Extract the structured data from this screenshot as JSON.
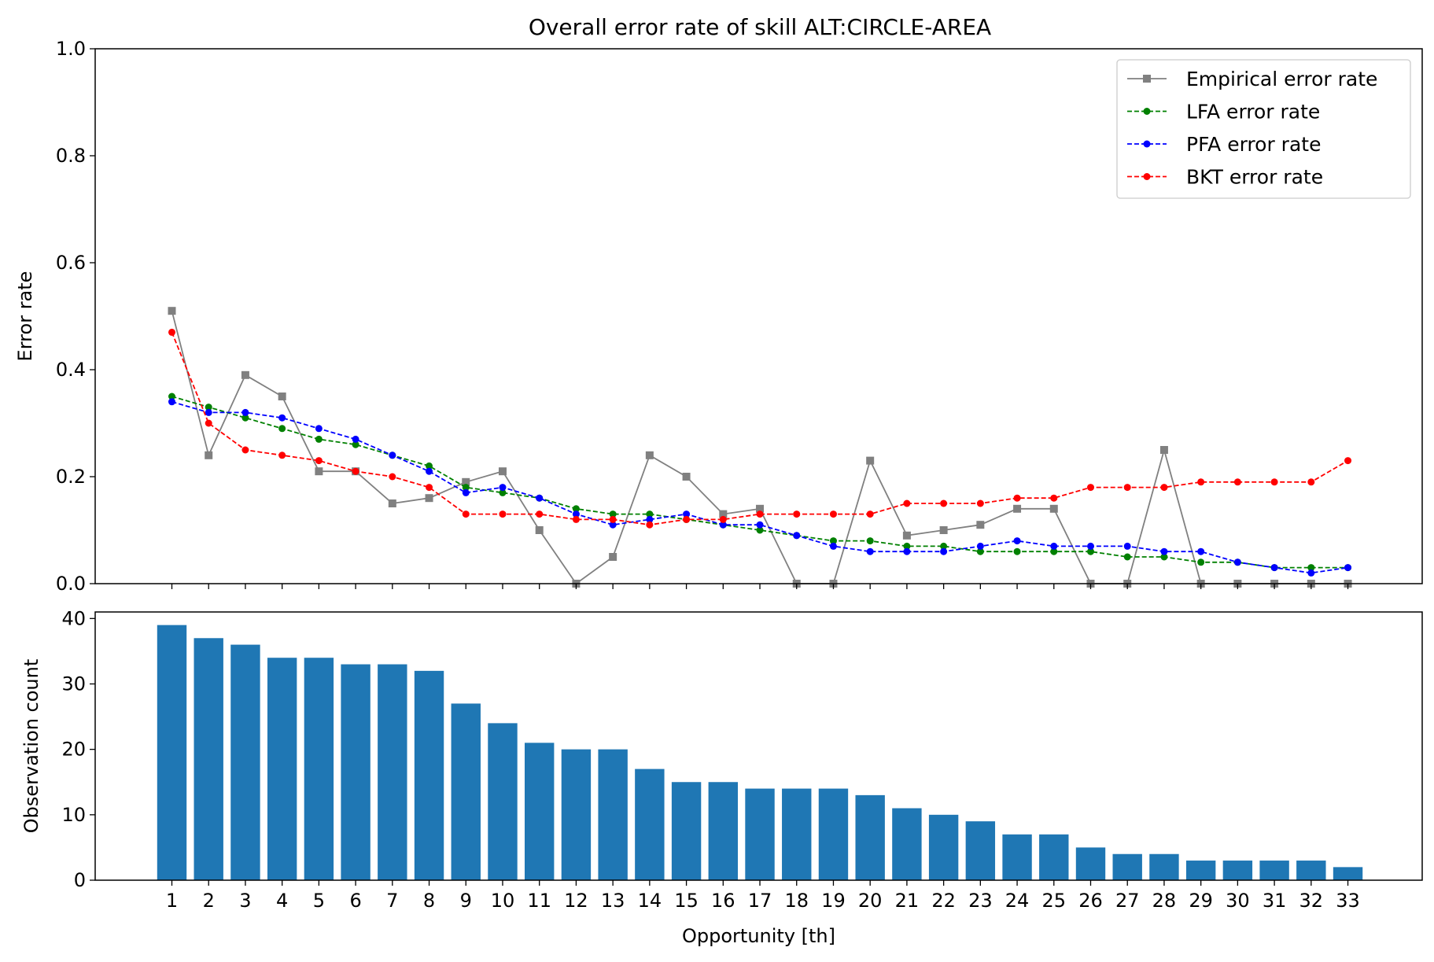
{
  "title": "Overall error rate of skill ALT:CIRCLE-AREA",
  "colors": {
    "empirical": "#808080",
    "lfa": "#008000",
    "pfa": "#0000ff",
    "bkt": "#ff0000",
    "bars": "#1f77b4"
  },
  "chart_data": [
    {
      "type": "line",
      "title": "Overall error rate of skill ALT:CIRCLE-AREA",
      "xlabel": "",
      "ylabel": "Error rate",
      "ylim": [
        0,
        1
      ],
      "yticks": [
        "0.0",
        "0.2",
        "0.4",
        "0.6",
        "0.8",
        "1.0"
      ],
      "x": [
        1,
        2,
        3,
        4,
        5,
        6,
        7,
        8,
        9,
        10,
        11,
        12,
        13,
        14,
        15,
        16,
        17,
        18,
        19,
        20,
        21,
        22,
        23,
        24,
        25,
        26,
        27,
        28,
        29,
        30,
        31,
        32,
        33
      ],
      "legend_position": "top-right",
      "series": [
        {
          "name": "Empirical error rate",
          "color": "#808080",
          "style": "solid",
          "marker": "square",
          "values": [
            0.51,
            0.24,
            0.39,
            0.35,
            0.21,
            0.21,
            0.15,
            0.16,
            0.19,
            0.21,
            0.1,
            0.0,
            0.05,
            0.24,
            0.2,
            0.13,
            0.14,
            0.0,
            0.0,
            0.23,
            0.09,
            0.1,
            0.11,
            0.14,
            0.14,
            0.0,
            0.0,
            0.25,
            0.0,
            0.0,
            0.0,
            0.0,
            0.0
          ]
        },
        {
          "name": "LFA error rate",
          "color": "#008000",
          "style": "dashed",
          "marker": "circle",
          "values": [
            0.35,
            0.33,
            0.31,
            0.29,
            0.27,
            0.26,
            0.24,
            0.22,
            0.18,
            0.17,
            0.16,
            0.14,
            0.13,
            0.13,
            0.12,
            0.11,
            0.1,
            0.09,
            0.08,
            0.08,
            0.07,
            0.07,
            0.06,
            0.06,
            0.06,
            0.06,
            0.05,
            0.05,
            0.04,
            0.04,
            0.03,
            0.03,
            0.03
          ]
        },
        {
          "name": "PFA error rate",
          "color": "#0000ff",
          "style": "dashed",
          "marker": "circle",
          "values": [
            0.34,
            0.32,
            0.32,
            0.31,
            0.29,
            0.27,
            0.24,
            0.21,
            0.17,
            0.18,
            0.16,
            0.13,
            0.11,
            0.12,
            0.13,
            0.11,
            0.11,
            0.09,
            0.07,
            0.06,
            0.06,
            0.06,
            0.07,
            0.08,
            0.07,
            0.07,
            0.07,
            0.06,
            0.06,
            0.04,
            0.03,
            0.02,
            0.03
          ]
        },
        {
          "name": "BKT error rate",
          "color": "#ff0000",
          "style": "dashed",
          "marker": "circle",
          "values": [
            0.47,
            0.3,
            0.25,
            0.24,
            0.23,
            0.21,
            0.2,
            0.18,
            0.13,
            0.13,
            0.13,
            0.12,
            0.12,
            0.11,
            0.12,
            0.12,
            0.13,
            0.13,
            0.13,
            0.13,
            0.15,
            0.15,
            0.15,
            0.16,
            0.16,
            0.18,
            0.18,
            0.18,
            0.19,
            0.19,
            0.19,
            0.19,
            0.23
          ]
        }
      ]
    },
    {
      "type": "bar",
      "xlabel": "Opportunity [th]",
      "ylabel": "Observation count",
      "ylim": [
        0,
        41
      ],
      "yticks": [
        "0",
        "10",
        "20",
        "30",
        "40"
      ],
      "categories": [
        "1",
        "2",
        "3",
        "4",
        "5",
        "6",
        "7",
        "8",
        "9",
        "10",
        "11",
        "12",
        "13",
        "14",
        "15",
        "16",
        "17",
        "18",
        "19",
        "20",
        "21",
        "22",
        "23",
        "24",
        "25",
        "26",
        "27",
        "28",
        "29",
        "30",
        "31",
        "32",
        "33"
      ],
      "values": [
        39,
        37,
        36,
        34,
        34,
        33,
        33,
        32,
        27,
        24,
        21,
        20,
        20,
        17,
        15,
        15,
        14,
        14,
        14,
        13,
        11,
        10,
        9,
        7,
        7,
        5,
        4,
        4,
        3,
        3,
        3,
        3,
        2
      ],
      "color": "#1f77b4"
    }
  ]
}
